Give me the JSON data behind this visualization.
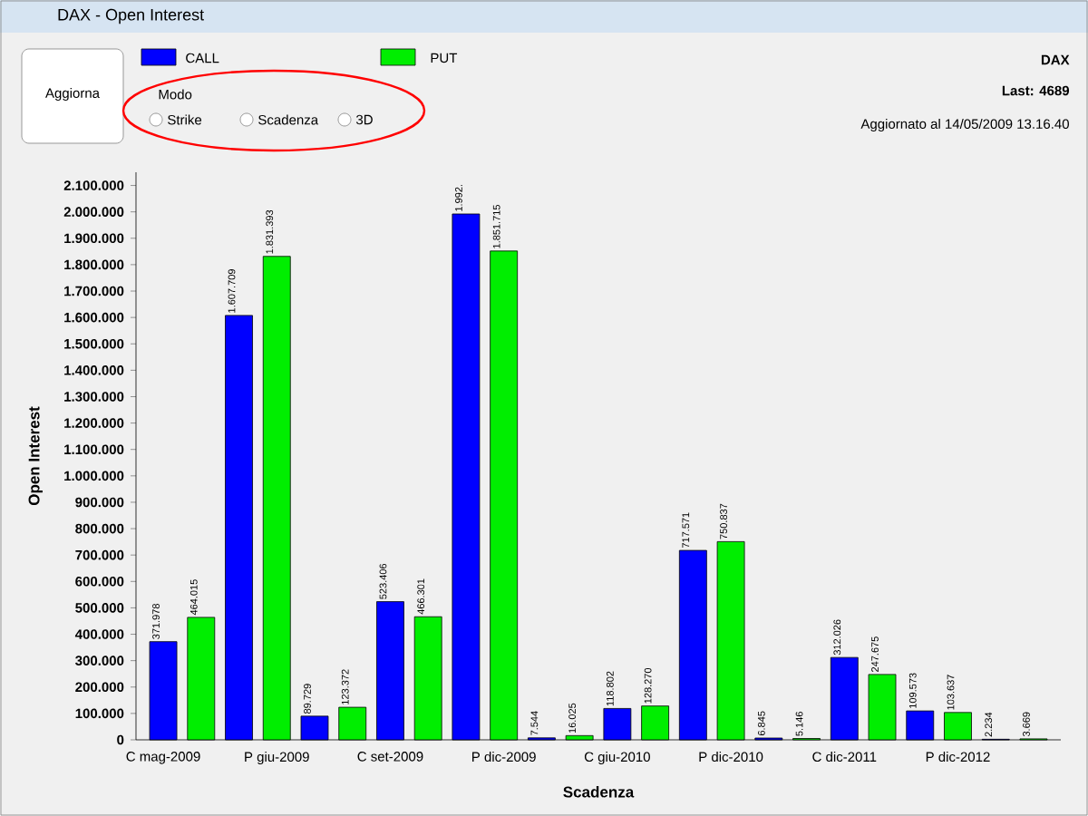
{
  "chart_data": {
    "type": "bar",
    "title": "DAX - Open Interest",
    "xlabel": "Scadenza",
    "ylabel": "Open Interest",
    "legend": "top",
    "categories": [
      "C mag-2009",
      null,
      null,
      "P giu-2009",
      null,
      null,
      "C set-2009",
      null,
      null,
      "P dic-2009",
      null,
      null,
      "C giu-2010",
      null,
      null,
      "P dic-2010",
      null,
      null,
      "C dic-2011",
      null,
      null,
      "P dic-2012",
      null,
      null
    ],
    "series": [
      {
        "name": "CALL",
        "color": "#0000ff",
        "values": [
          371978,
          null,
          1607709,
          null,
          89729,
          null,
          523406,
          null,
          1992000,
          null,
          7544,
          null,
          118802,
          null,
          717571,
          null,
          6845,
          null,
          312026,
          null,
          109573,
          null,
          2234,
          null
        ],
        "value_labels": [
          "371.978",
          null,
          "1.607.709",
          null,
          "89.729",
          null,
          "523.406",
          null,
          null,
          null,
          "7.544",
          null,
          "118.802",
          null,
          "717.571",
          null,
          "6.845",
          null,
          "312.026",
          null,
          "109.573",
          null,
          "2.234",
          null
        ]
      },
      {
        "name": "PUT",
        "color": "#00ee00",
        "values": [
          null,
          464015,
          null,
          1831393,
          null,
          123372,
          null,
          466301,
          null,
          1851715,
          null,
          16025,
          null,
          128270,
          null,
          750837,
          null,
          5146,
          null,
          247675,
          null,
          103637,
          null,
          3669
        ],
        "value_labels": [
          null,
          "464.015",
          null,
          "1.831.393",
          null,
          "123.372",
          null,
          "466.301",
          null,
          "1.851.715",
          null,
          "16.025",
          null,
          "128.270",
          null,
          "750.837",
          null,
          "5.146",
          null,
          "247.675",
          null,
          "103.637",
          null,
          "3.669"
        ]
      }
    ],
    "ylim": [
      0,
      2150000
    ],
    "yticks": [
      0,
      {
        "value": 100000,
        "label": "100.000"
      },
      {
        "value": 200000,
        "label": "200.000"
      },
      {
        "value": 300000,
        "label": "300.000"
      },
      {
        "value": 400000,
        "label": "400.000"
      },
      {
        "value": 500000,
        "label": "500.000"
      },
      {
        "value": 600000,
        "label": "600.000"
      },
      {
        "value": 700000,
        "label": "700.000"
      },
      {
        "value": 800000,
        "label": "800.000"
      },
      {
        "value": 900000,
        "label": "900.000"
      },
      {
        "value": 1000000,
        "label": "1.000.000"
      },
      {
        "value": 1100000,
        "label": "1.100.000"
      },
      {
        "value": 1200000,
        "label": "1.200.000"
      },
      {
        "value": 1300000,
        "label": "1.300.000"
      },
      {
        "value": 1400000,
        "label": "1.400.000"
      },
      {
        "value": 1500000,
        "label": "1.500.000"
      },
      {
        "value": 1600000,
        "label": "1.600.000"
      },
      {
        "value": 1700000,
        "label": "1.700.000"
      },
      {
        "value": 1800000,
        "label": "1.800.000"
      },
      {
        "value": 1900000,
        "label": "1.900.000"
      },
      {
        "value": 2000000,
        "label": "2.000.000"
      },
      {
        "value": 2100000,
        "label": "2.100.000"
      }
    ],
    "annotations": [
      "Aggiorna",
      "Modo",
      "Strike",
      "Scadenza",
      "3D",
      "DAX",
      "Last: 4689",
      "Aggiornato al 14/05/2009 13.16.40",
      "1.992."
    ]
  }
}
